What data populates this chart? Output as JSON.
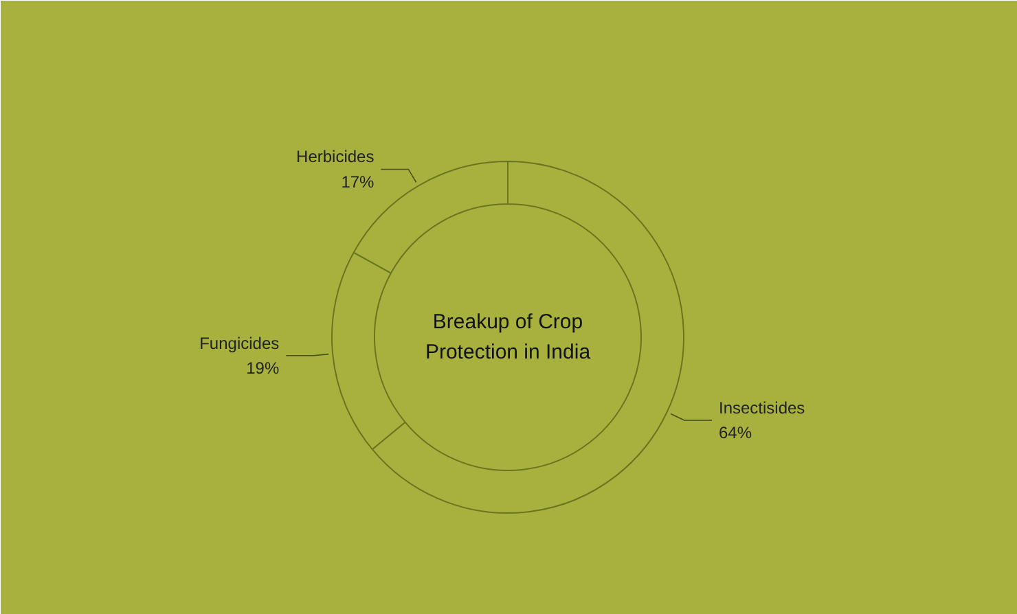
{
  "chart_data": {
    "type": "donut",
    "title": "Breakup of Crop Protection in India",
    "categories": [
      "Insectisides",
      "Fungicides",
      "Herbicides"
    ],
    "values": [
      64,
      19,
      17
    ],
    "colors": [
      "#a8b13e",
      "#a8b13e",
      "#a8b13e"
    ],
    "value_labels": [
      "64%",
      "19%",
      "17%"
    ]
  }
}
